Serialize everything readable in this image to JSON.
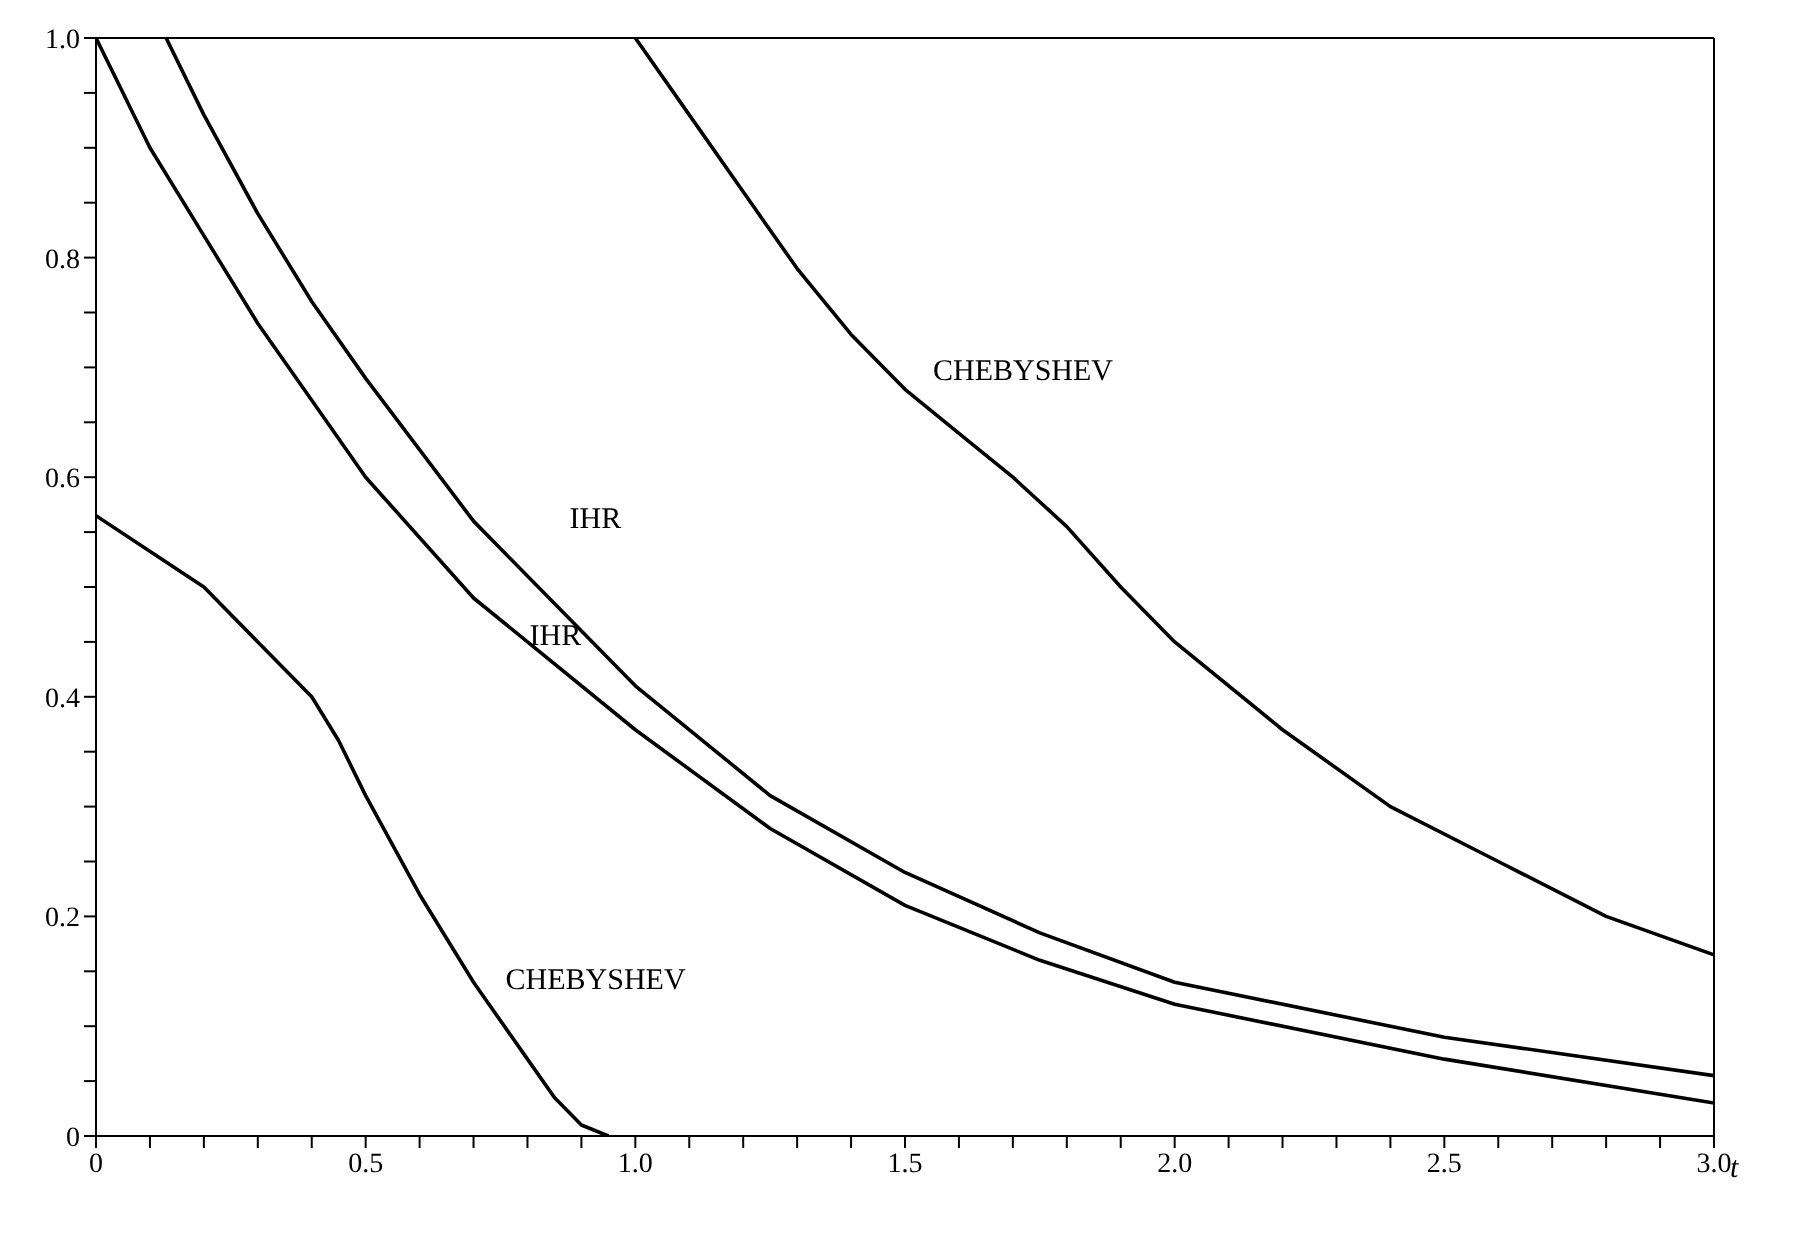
{
  "chart_data": {
    "type": "line",
    "xlabel": "t",
    "xlim": [
      0,
      3
    ],
    "ylim": [
      0,
      1
    ],
    "xticks": [
      {
        "value": 0,
        "label": "0"
      },
      {
        "value": 0.1,
        "label": null
      },
      {
        "value": 0.2,
        "label": null
      },
      {
        "value": 0.3,
        "label": null
      },
      {
        "value": 0.4,
        "label": null
      },
      {
        "value": 0.5,
        "label": "0.5"
      },
      {
        "value": 0.6,
        "label": null
      },
      {
        "value": 0.7,
        "label": null
      },
      {
        "value": 0.8,
        "label": null
      },
      {
        "value": 0.9,
        "label": null
      },
      {
        "value": 1,
        "label": "1.0"
      },
      {
        "value": 1.1,
        "label": null
      },
      {
        "value": 1.2,
        "label": null
      },
      {
        "value": 1.3,
        "label": null
      },
      {
        "value": 1.4,
        "label": null
      },
      {
        "value": 1.5,
        "label": "1.5"
      },
      {
        "value": 1.6,
        "label": null
      },
      {
        "value": 1.7,
        "label": null
      },
      {
        "value": 1.8,
        "label": null
      },
      {
        "value": 1.9,
        "label": null
      },
      {
        "value": 2,
        "label": "2.0"
      },
      {
        "value": 2.1,
        "label": null
      },
      {
        "value": 2.2,
        "label": null
      },
      {
        "value": 2.3,
        "label": null
      },
      {
        "value": 2.4,
        "label": null
      },
      {
        "value": 2.5,
        "label": "2.5"
      },
      {
        "value": 2.6,
        "label": null
      },
      {
        "value": 2.7,
        "label": null
      },
      {
        "value": 2.8,
        "label": null
      },
      {
        "value": 2.9,
        "label": null
      },
      {
        "value": 3,
        "label": "3.0"
      }
    ],
    "yticks": [
      {
        "value": 0,
        "label": "0"
      },
      {
        "value": 0.05,
        "label": null
      },
      {
        "value": 0.1,
        "label": null
      },
      {
        "value": 0.15,
        "label": null
      },
      {
        "value": 0.2,
        "label": "0.2"
      },
      {
        "value": 0.25,
        "label": null
      },
      {
        "value": 0.3,
        "label": null
      },
      {
        "value": 0.35,
        "label": null
      },
      {
        "value": 0.4,
        "label": "0.4"
      },
      {
        "value": 0.45,
        "label": null
      },
      {
        "value": 0.5,
        "label": null
      },
      {
        "value": 0.55,
        "label": null
      },
      {
        "value": 0.6,
        "label": "0.6"
      },
      {
        "value": 0.65,
        "label": null
      },
      {
        "value": 0.7,
        "label": null
      },
      {
        "value": 0.75,
        "label": null
      },
      {
        "value": 0.8,
        "label": "0.8"
      },
      {
        "value": 0.85,
        "label": null
      },
      {
        "value": 0.9,
        "label": null
      },
      {
        "value": 0.95,
        "label": null
      },
      {
        "value": 1,
        "label": "1.0"
      }
    ],
    "marker": "none",
    "line_style": "solid",
    "series": [
      {
        "name": "CHEBYSHEV",
        "color": "#000000",
        "x": [
          1.0,
          1.1,
          1.2,
          1.3,
          1.4,
          1.5,
          1.6,
          1.7,
          1.8,
          1.9,
          2.0,
          2.2,
          2.4,
          2.6,
          2.8,
          3.0
        ],
        "values": [
          1.0,
          0.93,
          0.86,
          0.79,
          0.73,
          0.68,
          0.64,
          0.6,
          0.555,
          0.5,
          0.45,
          0.37,
          0.3,
          0.25,
          0.2,
          0.165
        ]
      },
      {
        "name": "CHEBYSHEV",
        "color": "#000000",
        "x": [
          0,
          0.2,
          0.3,
          0.4,
          0.45,
          0.5,
          0.6,
          0.7,
          0.8,
          0.85,
          0.9,
          0.95
        ],
        "values": [
          0.565,
          0.5,
          0.45,
          0.4,
          0.36,
          0.31,
          0.22,
          0.14,
          0.07,
          0.035,
          0.01,
          0
        ]
      },
      {
        "name": "IHR",
        "color": "#000000",
        "x": [
          0,
          0.1,
          0.2,
          0.3,
          0.4,
          0.5,
          0.7,
          1.0,
          1.25,
          1.5,
          1.75,
          2.0,
          2.5,
          3.0
        ],
        "values": [
          1.0,
          0.9,
          0.82,
          0.74,
          0.67,
          0.6,
          0.49,
          0.37,
          0.28,
          0.21,
          0.16,
          0.12,
          0.07,
          0.03
        ]
      },
      {
        "name": "IHR",
        "color": "#000000",
        "x": [
          0.13,
          0.2,
          0.3,
          0.4,
          0.5,
          0.7,
          1.0,
          1.25,
          1.5,
          1.75,
          2.0,
          2.5,
          3.0
        ],
        "values": [
          1.0,
          0.93,
          0.84,
          0.76,
          0.69,
          0.56,
          0.41,
          0.31,
          0.24,
          0.185,
          0.14,
          0.09,
          0.055
        ]
      }
    ]
  }
}
